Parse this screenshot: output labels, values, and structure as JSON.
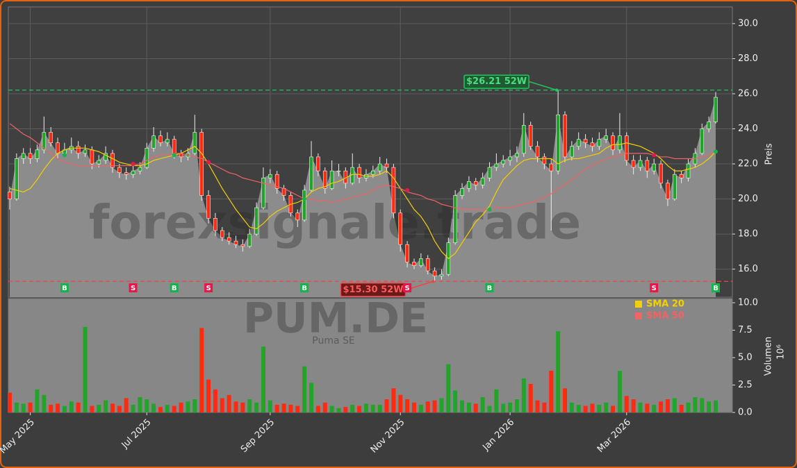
{
  "chart_data": {
    "type": "candlestick",
    "watermark": "forexsignale.trade",
    "symbol": "PUM.DE",
    "company": "Puma SE",
    "categories": [
      null,
      null,
      null,
      "May 2025",
      null,
      null,
      null,
      null,
      null,
      null,
      null,
      null,
      null,
      null,
      null,
      null,
      null,
      null,
      null,
      null,
      "Jul 2025",
      null,
      null,
      null,
      null,
      null,
      null,
      null,
      null,
      null,
      null,
      null,
      null,
      null,
      null,
      null,
      null,
      null,
      "Sep 2025",
      null,
      null,
      null,
      null,
      null,
      null,
      null,
      null,
      null,
      null,
      null,
      null,
      null,
      null,
      null,
      null,
      null,
      null,
      "Nov 2025",
      null,
      null,
      null,
      null,
      null,
      null,
      null,
      null,
      null,
      null,
      null,
      null,
      null,
      null,
      null,
      "Jan 2026",
      null,
      null,
      null,
      null,
      null,
      null,
      null,
      null,
      null,
      null,
      null,
      null,
      null,
      null,
      null,
      null,
      "Mar 2026",
      null,
      null,
      null,
      null,
      null,
      null,
      null,
      null,
      null,
      null,
      null,
      null,
      null
    ],
    "open": [
      20.4,
      20.0,
      22.3,
      22.6,
      22.3,
      22.8,
      23.8,
      23.2,
      22.6,
      22.8,
      23.0,
      22.6,
      22.8,
      22.0,
      22.2,
      22.6,
      21.8,
      21.5,
      21.4,
      21.6,
      21.8,
      22.9,
      23.6,
      23.2,
      23.4,
      22.6,
      22.4,
      22.6,
      23.8,
      20.2,
      18.9,
      18.2,
      17.8,
      17.6,
      17.4,
      17.3,
      18.0,
      19.5,
      21.2,
      21.4,
      20.6,
      20.2,
      19.2,
      18.8,
      20.5,
      22.4,
      21.6,
      20.6,
      21.6,
      21.6,
      20.9,
      21.8,
      21.2,
      21.4,
      21.6,
      22.0,
      21.8,
      19.2,
      17.4,
      16.4,
      16.2,
      16.6,
      15.9,
      15.6,
      15.7,
      17.5,
      20.2,
      20.6,
      21.0,
      20.8,
      21.2,
      21.8,
      22.0,
      22.2,
      22.4,
      22.6,
      24.2,
      23.0,
      22.4,
      22.0,
      21.6,
      24.8,
      22.4,
      23.0,
      23.4,
      23.2,
      23.0,
      23.4,
      23.6,
      22.8,
      23.6,
      22.2,
      21.8,
      22.2,
      21.6,
      22.0,
      20.9,
      20.0,
      21.4,
      21.2,
      22.0,
      22.6,
      24.0,
      24.4
    ],
    "high": [
      20.7,
      22.6,
      22.9,
      22.9,
      23.1,
      24.7,
      24.1,
      23.5,
      23.2,
      23.5,
      23.3,
      23.1,
      23.0,
      22.5,
      23.0,
      22.8,
      22.0,
      21.8,
      21.9,
      22.1,
      23.2,
      24.1,
      23.9,
      23.8,
      23.6,
      22.8,
      22.9,
      24.8,
      24.0,
      20.5,
      19.2,
      18.4,
      18.1,
      17.9,
      17.7,
      18.3,
      19.8,
      21.8,
      21.7,
      21.6,
      20.8,
      20.4,
      19.4,
      20.8,
      23.3,
      22.6,
      21.8,
      22.2,
      22.0,
      21.8,
      22.6,
      22.0,
      21.7,
      21.9,
      22.4,
      22.3,
      22.0,
      19.4,
      17.6,
      16.6,
      16.9,
      16.8,
      16.1,
      16.0,
      17.8,
      20.5,
      20.9,
      21.3,
      21.2,
      21.5,
      22.1,
      22.6,
      22.5,
      22.8,
      23.0,
      24.9,
      24.4,
      23.3,
      22.6,
      22.3,
      26.21,
      25.0,
      23.3,
      23.8,
      23.7,
      23.5,
      23.8,
      24.0,
      23.8,
      24.9,
      23.8,
      22.5,
      22.5,
      22.4,
      22.3,
      22.2,
      21.1,
      21.7,
      21.6,
      22.3,
      22.9,
      24.3,
      24.7,
      26.1
    ],
    "low": [
      19.4,
      19.9,
      22.0,
      22.0,
      22.1,
      22.6,
      23.0,
      22.3,
      22.4,
      22.6,
      22.3,
      22.4,
      21.7,
      21.8,
      22.0,
      21.5,
      21.2,
      21.1,
      21.2,
      21.4,
      21.7,
      22.7,
      23.0,
      23.0,
      22.3,
      22.1,
      22.2,
      22.5,
      19.9,
      18.6,
      17.9,
      17.6,
      17.4,
      17.2,
      17.0,
      17.2,
      17.9,
      19.4,
      20.9,
      20.3,
      19.9,
      19.0,
      18.4,
      18.7,
      20.4,
      21.3,
      20.3,
      20.5,
      21.3,
      20.6,
      20.8,
      20.9,
      21.0,
      21.2,
      21.4,
      21.5,
      18.9,
      17.0,
      16.1,
      16.0,
      16.1,
      15.7,
      15.3,
      15.4,
      15.6,
      17.4,
      20.0,
      20.4,
      20.5,
      20.6,
      21.0,
      21.6,
      21.8,
      21.9,
      22.1,
      22.4,
      22.8,
      22.1,
      21.7,
      18.2,
      21.4,
      22.1,
      22.2,
      22.8,
      22.9,
      22.7,
      22.8,
      23.2,
      22.5,
      22.6,
      21.9,
      21.4,
      21.6,
      21.2,
      21.4,
      20.6,
      19.6,
      19.9,
      20.9,
      21.0,
      21.8,
      22.5,
      23.8,
      24.3
    ],
    "close": [
      20.0,
      22.3,
      22.6,
      22.3,
      22.8,
      23.8,
      23.2,
      22.6,
      22.8,
      23.0,
      22.6,
      22.8,
      22.0,
      22.2,
      22.6,
      21.8,
      21.5,
      21.4,
      21.6,
      21.8,
      22.9,
      23.6,
      23.2,
      23.4,
      22.6,
      22.4,
      22.6,
      23.8,
      20.2,
      18.9,
      18.2,
      17.8,
      17.6,
      17.4,
      17.3,
      18.0,
      19.5,
      21.2,
      21.4,
      20.6,
      20.2,
      19.2,
      18.8,
      20.5,
      22.4,
      21.6,
      20.6,
      21.6,
      21.6,
      20.9,
      21.8,
      21.2,
      21.4,
      21.6,
      22.0,
      21.8,
      19.2,
      17.4,
      16.4,
      16.2,
      16.6,
      15.9,
      15.6,
      15.7,
      17.5,
      20.2,
      20.6,
      21.0,
      20.8,
      21.2,
      21.8,
      22.0,
      22.2,
      22.4,
      22.6,
      24.2,
      23.0,
      22.4,
      22.0,
      21.6,
      24.8,
      22.4,
      23.0,
      23.4,
      23.2,
      23.0,
      23.4,
      23.6,
      22.8,
      23.6,
      22.2,
      21.8,
      22.2,
      21.6,
      22.0,
      20.9,
      20.0,
      21.4,
      21.2,
      22.0,
      22.6,
      24.0,
      24.4,
      25.8
    ],
    "volume": [
      1.8,
      0.9,
      0.8,
      0.9,
      2.1,
      1.6,
      0.7,
      0.8,
      0.6,
      1.0,
      0.9,
      7.8,
      0.6,
      0.7,
      1.1,
      0.8,
      0.6,
      1.3,
      0.7,
      1.4,
      1.2,
      0.8,
      0.5,
      0.7,
      0.6,
      0.9,
      1.0,
      1.2,
      7.7,
      3.0,
      2.1,
      1.3,
      1.6,
      1.0,
      0.9,
      1.2,
      0.9,
      6.0,
      1.1,
      0.7,
      0.8,
      0.7,
      0.6,
      4.2,
      2.7,
      0.6,
      0.9,
      0.6,
      0.4,
      0.5,
      0.7,
      0.6,
      0.8,
      0.7,
      0.7,
      1.2,
      2.2,
      1.6,
      1.2,
      0.9,
      0.7,
      1.0,
      1.1,
      1.3,
      4.4,
      2.0,
      1.1,
      0.9,
      0.8,
      1.4,
      0.6,
      2.1,
      0.8,
      0.9,
      1.2,
      3.1,
      2.6,
      1.1,
      0.9,
      3.8,
      7.4,
      2.2,
      0.9,
      0.7,
      0.6,
      0.8,
      0.7,
      0.9,
      0.6,
      3.8,
      1.5,
      1.2,
      0.9,
      0.8,
      0.7,
      1.0,
      1.2,
      1.3,
      0.7,
      0.9,
      1.4,
      1.3,
      1.0,
      1.1
    ],
    "up_color": "#22a32a",
    "down_color": "#ff2a10",
    "area_color": "#8c8c8c",
    "sma": [
      {
        "name": "SMA 20",
        "color": "#f5cf00",
        "values": [
          20.6,
          20.5,
          20.4,
          20.6,
          21.1,
          21.7,
          22.2,
          22.6,
          22.8,
          22.9,
          22.9,
          22.9,
          22.8,
          22.7,
          22.5,
          22.3,
          22.1,
          22.0,
          21.9,
          21.9,
          22.0,
          22.2,
          22.3,
          22.4,
          22.5,
          22.6,
          22.8,
          23.0,
          22.6,
          22.0,
          21.3,
          20.6,
          20.0,
          19.4,
          18.9,
          18.4,
          18.3,
          18.6,
          19.0,
          19.3,
          19.5,
          19.7,
          19.8,
          20.0,
          20.4,
          20.6,
          20.7,
          20.9,
          21.0,
          21.2,
          21.4,
          21.4,
          21.3,
          21.3,
          21.4,
          21.6,
          21.2,
          20.6,
          20.0,
          19.4,
          19.0,
          18.4,
          17.6,
          17.0,
          16.6,
          16.9,
          17.5,
          18.1,
          18.7,
          19.1,
          19.6,
          20.4,
          21.1,
          21.5,
          21.9,
          22.2,
          22.3,
          22.3,
          22.3,
          22.3,
          22.0,
          22.2,
          22.3,
          22.3,
          22.4,
          22.5,
          22.6,
          22.9,
          23.1,
          23.1,
          23.2,
          23.1,
          23.0,
          22.8,
          22.6,
          22.3,
          21.9,
          21.6,
          21.6,
          21.7,
          21.8,
          22.0,
          22.3,
          22.7
        ]
      },
      {
        "name": "SMA 50",
        "color": "#f06464",
        "values": [
          24.3,
          24.0,
          23.7,
          23.5,
          23.2,
          22.9,
          22.6,
          22.3,
          22.1,
          22.0,
          21.9,
          21.9,
          21.9,
          21.9,
          21.9,
          21.9,
          21.9,
          21.9,
          21.9,
          22.0,
          22.2,
          22.4,
          22.5,
          22.5,
          22.6,
          22.6,
          22.5,
          22.4,
          22.3,
          22.1,
          21.9,
          21.7,
          21.5,
          21.4,
          21.2,
          21.1,
          21.0,
          20.9,
          20.8,
          20.7,
          20.6,
          20.4,
          20.2,
          20.0,
          20.0,
          19.9,
          19.9,
          19.8,
          19.9,
          20.0,
          20.1,
          20.2,
          20.3,
          20.5,
          20.7,
          20.8,
          20.7,
          20.6,
          20.4,
          20.3,
          20.2,
          20.0,
          19.9,
          19.7,
          19.6,
          19.5,
          19.4,
          19.4,
          19.4,
          19.4,
          19.4,
          19.5,
          19.5,
          19.5,
          19.6,
          19.7,
          19.8,
          19.9,
          20.1,
          20.3,
          20.6,
          20.8,
          21.1,
          21.4,
          21.7,
          21.9,
          22.1,
          22.3,
          22.4,
          22.5,
          22.6,
          22.6,
          22.6,
          22.6,
          22.5,
          22.4,
          22.4,
          22.3,
          22.3,
          22.3,
          22.3,
          22.4,
          22.5,
          22.7
        ]
      }
    ],
    "signals": {
      "values": [
        null,
        null,
        null,
        null,
        null,
        null,
        null,
        null,
        22.5,
        null,
        null,
        null,
        null,
        null,
        null,
        null,
        null,
        null,
        22.0,
        null,
        null,
        null,
        null,
        null,
        22.5,
        null,
        null,
        null,
        null,
        22.1,
        null,
        null,
        null,
        null,
        null,
        null,
        null,
        null,
        null,
        null,
        null,
        null,
        null,
        20.0,
        null,
        null,
        null,
        null,
        null,
        null,
        null,
        null,
        null,
        null,
        null,
        null,
        null,
        null,
        20.5,
        null,
        null,
        null,
        null,
        null,
        null,
        null,
        null,
        null,
        null,
        null,
        19.4,
        null,
        null,
        null,
        null,
        null,
        null,
        null,
        null,
        null,
        null,
        null,
        null,
        null,
        null,
        null,
        null,
        null,
        null,
        null,
        null,
        null,
        null,
        null,
        22.5,
        null,
        null,
        null,
        null,
        null,
        null,
        null,
        null,
        22.7
      ],
      "value_labels": [
        null,
        null,
        null,
        null,
        null,
        null,
        null,
        null,
        "B",
        null,
        null,
        null,
        null,
        null,
        null,
        null,
        null,
        null,
        "S",
        null,
        null,
        null,
        null,
        null,
        "B",
        null,
        null,
        null,
        null,
        "S",
        null,
        null,
        null,
        null,
        null,
        null,
        null,
        null,
        null,
        null,
        null,
        null,
        null,
        "B",
        null,
        null,
        null,
        null,
        null,
        null,
        null,
        null,
        null,
        null,
        null,
        null,
        null,
        null,
        "S",
        null,
        null,
        null,
        null,
        null,
        null,
        null,
        null,
        null,
        null,
        null,
        "B",
        null,
        null,
        null,
        null,
        null,
        null,
        null,
        null,
        null,
        null,
        null,
        null,
        null,
        null,
        null,
        null,
        null,
        null,
        null,
        null,
        null,
        null,
        null,
        "S",
        null,
        null,
        null,
        null,
        null,
        null,
        null,
        null,
        "B"
      ],
      "colors": {
        "B": "#12b54a",
        "S": "#e8174a"
      }
    },
    "high_52w": {
      "value": 26.21,
      "label": "$26.21 52W",
      "color": "#22c55e"
    },
    "low_52w": {
      "value": 15.3,
      "label": "$15.30 52W",
      "color": "#ef4444"
    },
    "ylabel": "Preis",
    "ylim": [
      14.4,
      30.95
    ],
    "yticks": [
      {
        "value": 16,
        "label": "16.0"
      },
      {
        "value": 18,
        "label": "18.0"
      },
      {
        "value": 20,
        "label": "20.0"
      },
      {
        "value": 22,
        "label": "22.0"
      },
      {
        "value": 24,
        "label": "24.0"
      },
      {
        "value": 26,
        "label": "26.0"
      },
      {
        "value": 28,
        "label": "28.0"
      },
      {
        "value": 30,
        "label": "30.0"
      }
    ],
    "volume_ylabel": "Volumen",
    "volume_scale": "10⁶",
    "volume_ylim": [
      0,
      10.38
    ],
    "volume_yticks": [
      {
        "value": 0,
        "label": "0.0"
      },
      {
        "value": 2.5,
        "label": "2.5"
      },
      {
        "value": 5,
        "label": "5.0"
      },
      {
        "value": 7.5,
        "label": "7.5"
      },
      {
        "value": 10,
        "label": "10.0"
      }
    ],
    "grid": true,
    "legend": "upper right"
  }
}
